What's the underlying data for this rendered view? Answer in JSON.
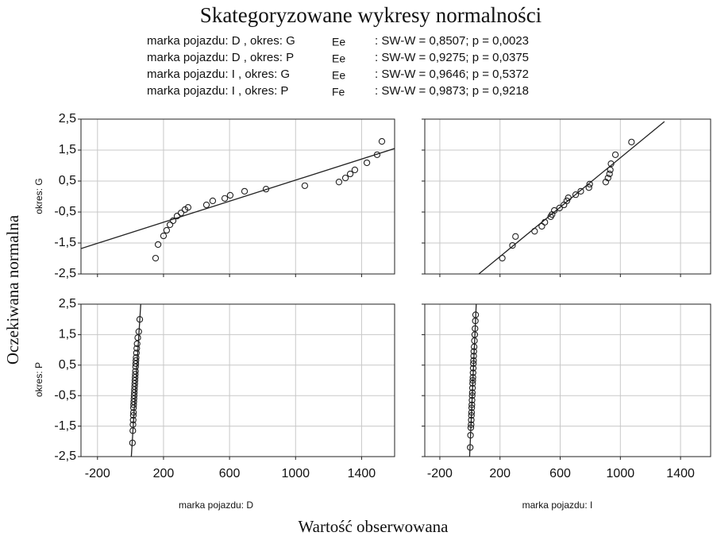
{
  "title": "Skategoryzowane wykresy normalności",
  "legend": [
    {
      "label": "marka pojazdu: D , okres: G",
      "symbol": "Ee",
      "stat": ":  SW-W = 0,8507; p = 0,0023"
    },
    {
      "label": "marka pojazdu: D , okres: P",
      "symbol": "Ee",
      "stat": ":  SW-W = 0,9275; p = 0,0375"
    },
    {
      "label": "marka pojazdu: I , okres: G",
      "symbol": "Ee",
      "stat": ":  SW-W = 0,9646; p = 0,5372"
    },
    {
      "label": "marka pojazdu: I , okres: P",
      "symbol": "Fe",
      "stat": ":  SW-W = 0,9873; p = 0,9218"
    }
  ],
  "y_label": "Oczekiwana normalna",
  "x_label": "Wartość obserwowana",
  "rows": [
    "okres: G",
    "okres: P"
  ],
  "columns": [
    "marka pojazdu: D",
    "marka pojazdu: I"
  ],
  "xlim": [
    -300,
    1600
  ],
  "ylim": [
    -2.5,
    2.5
  ],
  "xticks": [
    -200,
    200,
    600,
    1000,
    1400
  ],
  "yticks": [
    {
      "value": 2.5,
      "label": "2,5"
    },
    {
      "value": 1.5,
      "label": "1,5"
    },
    {
      "value": 0.5,
      "label": "0,5"
    },
    {
      "value": -0.5,
      "label": "-0,5"
    },
    {
      "value": -1.5,
      "label": "-1,5"
    },
    {
      "value": -2.5,
      "label": "-2,5"
    }
  ],
  "grid": true,
  "chart_data": [
    {
      "type": "scatter",
      "color": "#222222",
      "x": [
        152,
        167,
        200,
        219,
        239,
        258,
        282,
        306,
        330,
        349,
        460,
        498,
        571,
        604,
        691,
        821,
        1056,
        1263,
        1302,
        1331,
        1359,
        1432,
        1494,
        1523
      ],
      "y": [
        -1.99,
        -1.55,
        -1.27,
        -1.09,
        -0.91,
        -0.78,
        -0.63,
        -0.53,
        -0.42,
        -0.35,
        -0.27,
        -0.14,
        -0.06,
        0.04,
        0.17,
        0.24,
        0.35,
        0.47,
        0.6,
        0.73,
        0.86,
        1.09,
        1.35,
        1.78
      ],
      "fit": {
        "x": [
          -300,
          1600
        ],
        "y": [
          -1.68,
          1.55
        ]
      }
    },
    {
      "type": "scatter",
      "color": "#222222",
      "x": [
        215,
        283,
        303,
        430,
        478,
        498,
        537,
        546,
        561,
        596,
        625,
        644,
        654,
        703,
        737,
        791,
        796,
        903,
        918,
        928,
        933,
        938,
        967,
        1074
      ],
      "y": [
        -1.99,
        -1.58,
        -1.29,
        -1.12,
        -0.96,
        -0.83,
        -0.65,
        -0.58,
        -0.45,
        -0.37,
        -0.27,
        -0.14,
        -0.04,
        0.06,
        0.17,
        0.29,
        0.4,
        0.47,
        0.6,
        0.73,
        0.86,
        1.06,
        1.35,
        1.76
      ],
      "fit": {
        "x": [
          59,
          1293
        ],
        "y": [
          -2.5,
          2.42
        ]
      }
    },
    {
      "type": "scatter",
      "color": "#222222",
      "x": [
        12,
        14,
        15,
        16,
        17,
        18,
        18,
        19,
        20,
        21,
        22,
        23,
        24,
        25,
        26,
        27,
        28,
        29,
        30,
        31,
        32,
        33,
        34,
        36,
        38,
        40,
        44,
        50,
        56
      ],
      "y": [
        -2.05,
        -1.65,
        -1.45,
        -1.3,
        -1.15,
        -1.05,
        -0.9,
        -0.8,
        -0.7,
        -0.6,
        -0.5,
        -0.4,
        -0.3,
        -0.2,
        -0.1,
        0,
        0.1,
        0.2,
        0.3,
        0.45,
        0.55,
        0.65,
        0.75,
        0.9,
        1.05,
        1.2,
        1.4,
        1.6,
        2.0
      ],
      "fit": {
        "x": [
          5,
          62
        ],
        "y": [
          -2.5,
          2.5
        ]
      }
    },
    {
      "type": "scatter",
      "color": "#222222",
      "x": [
        2,
        4,
        6,
        8,
        9,
        10,
        11,
        12,
        13,
        14,
        15,
        16,
        17,
        18,
        19,
        20,
        21,
        22,
        23,
        24,
        25,
        26,
        28,
        30,
        32,
        34,
        36,
        38
      ],
      "y": [
        -2.2,
        -1.8,
        -1.55,
        -1.45,
        -1.3,
        -1.15,
        -1.05,
        -0.9,
        -0.8,
        -0.65,
        -0.5,
        -0.4,
        -0.25,
        -0.1,
        0,
        0.1,
        0.25,
        0.4,
        0.55,
        0.65,
        0.8,
        0.95,
        1.1,
        1.3,
        1.5,
        1.7,
        1.95,
        2.15
      ],
      "fit": {
        "x": [
          -2,
          42
        ],
        "y": [
          -2.5,
          2.5
        ]
      }
    }
  ]
}
